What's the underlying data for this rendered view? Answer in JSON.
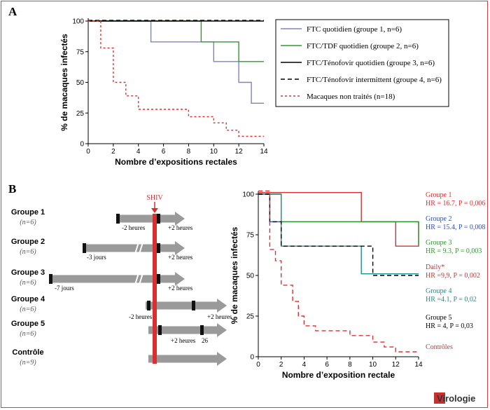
{
  "panels": {
    "a_label": "A",
    "b_label": "B"
  },
  "logo": {
    "text": "Virologie"
  },
  "chart_data": [
    {
      "type": "line",
      "xlabel": "Nombre d’expositions rectales",
      "ylabel": "% de macaques infectés",
      "xlim": [
        0,
        14
      ],
      "ylim": [
        0,
        100
      ],
      "xticks": [
        0,
        2,
        4,
        6,
        8,
        10,
        12,
        14
      ],
      "yticks": [
        0,
        25,
        50,
        75,
        100
      ],
      "legend_placement": "right",
      "series": [
        {
          "name": "FTC quotidien (groupe 1, n=6)",
          "color": "#8080c8",
          "dash": "solid",
          "x": [
            0,
            5,
            5,
            10,
            10,
            12,
            12,
            13,
            13,
            14
          ],
          "y": [
            100,
            100,
            83,
            83,
            67,
            67,
            50,
            50,
            33,
            33
          ]
        },
        {
          "name": "FTC/TDF quotidien (groupe 2, n=6)",
          "color": "#2e9a2e",
          "dash": "solid",
          "x": [
            0,
            9,
            9,
            12,
            12,
            14
          ],
          "y": [
            100,
            100,
            83,
            83,
            67,
            67
          ]
        },
        {
          "name": "FTC/Ténofovir quotidien (groupe 3, n=6)",
          "color": "#000000",
          "dash": "solid",
          "x": [
            0,
            14
          ],
          "y": [
            100,
            100
          ]
        },
        {
          "name": "FTC/Ténofovir intermittent (groupe 4, n=6)",
          "color": "#000000",
          "dash": "dashed",
          "x": [
            0,
            14
          ],
          "y": [
            100.5,
            100.5
          ]
        },
        {
          "name": "Macaques non traités (n=18)",
          "color": "#e03030",
          "dash": "dotted",
          "x": [
            0,
            1,
            1,
            2,
            2,
            3,
            3,
            4,
            4,
            8,
            8,
            10,
            10,
            11,
            11,
            12,
            12,
            13,
            13,
            14
          ],
          "y": [
            100,
            100,
            78,
            78,
            50,
            50,
            39,
            39,
            28,
            28,
            22,
            22,
            17,
            17,
            11,
            11,
            6,
            6,
            6,
            6
          ]
        }
      ]
    },
    {
      "type": "line",
      "xlabel": "Nombre d’exposition rectale",
      "ylabel": "% de macaques infectés",
      "xlim": [
        0,
        14
      ],
      "ylim": [
        0,
        100
      ],
      "xticks": [
        0,
        2,
        4,
        6,
        8,
        10,
        12,
        14
      ],
      "yticks": [
        0,
        25,
        50,
        75,
        100
      ],
      "series": [
        {
          "name": "Groupe 1",
          "color": "#d83030",
          "dash": "solid",
          "x": [
            0,
            9,
            9,
            12,
            12,
            14,
            14
          ],
          "y": [
            101,
            101,
            83,
            83,
            68,
            68,
            83
          ]
        },
        {
          "name": "Groupe 2",
          "color": "#3050b0",
          "dash": "solid",
          "x": [
            0,
            1,
            1,
            14
          ],
          "y": [
            100,
            100,
            83,
            83
          ]
        },
        {
          "name": "Groupe 3",
          "color": "#2e9a2e",
          "dash": "solid",
          "x": [
            0,
            2,
            2,
            14,
            14
          ],
          "y": [
            100,
            100,
            83,
            83,
            68
          ]
        },
        {
          "name": "Groupe 4",
          "color": "#1a9090",
          "dash": "solid",
          "x": [
            0,
            2,
            2,
            9,
            9,
            14
          ],
          "y": [
            100,
            100,
            68,
            68,
            51,
            51
          ]
        },
        {
          "name": "Groupe 5",
          "color": "#000000",
          "dash": "dashed",
          "x": [
            0,
            1,
            1,
            2,
            2,
            10,
            10,
            14
          ],
          "y": [
            100,
            100,
            83,
            83,
            68,
            68,
            50,
            50
          ]
        },
        {
          "name": "Contrôles",
          "color": "#e03030",
          "dash": "dashed",
          "x": [
            0,
            1,
            1,
            1.5,
            1.5,
            2,
            2,
            3,
            3,
            3.5,
            3.5,
            4,
            4,
            5,
            5,
            8,
            8,
            10,
            10,
            11,
            11,
            12,
            12,
            13,
            13,
            14
          ],
          "y": [
            102,
            102,
            66,
            66,
            59,
            59,
            44,
            44,
            34,
            34,
            25,
            25,
            19,
            19,
            16,
            16,
            13,
            13,
            9,
            9,
            6,
            6,
            3,
            3,
            3,
            3
          ]
        },
        {
          "name": "Daily*",
          "color": "#d83030",
          "dash": "solid",
          "x": [],
          "y": []
        }
      ],
      "annotations": [
        {
          "label": "Groupe 1",
          "stats": "HR = 16.7, P = 0,006",
          "color": "#d83030"
        },
        {
          "label": "Groupe 2",
          "stats": "HR = 15.4, P = 0,008",
          "color": "#3050b0"
        },
        {
          "label": "Groupe 3",
          "stats": "HR = 9.3, P = 0,003",
          "color": "#2e9a2e"
        },
        {
          "label": "Daily*",
          "stats": "HR =9,9, P = 0,002",
          "color": "#d83030"
        },
        {
          "label": "Groupe 4",
          "stats": "HR =4.1, P = 0,02",
          "color": "#1a9090"
        },
        {
          "label": "Groupe 5",
          "stats": "HR = 4, P = 0,03",
          "color": "#000000"
        },
        {
          "label": "Contrôles",
          "stats": "",
          "color": "#e03030"
        }
      ]
    }
  ],
  "schema": {
    "shiv_label": "SHIV",
    "groups": [
      {
        "name": "Groupe 1",
        "n": "(n=6)",
        "labels": [
          "-2 heures",
          "+2 heures"
        ]
      },
      {
        "name": "Groupe 2",
        "n": "(n=6)",
        "labels": [
          "-3 jours",
          "+2 heures"
        ]
      },
      {
        "name": "Groupe 3",
        "n": "(n=6)",
        "labels": [
          "-7 jours",
          "+2 heures"
        ]
      },
      {
        "name": "Groupe 4",
        "n": "(n=6)",
        "labels": [
          "-2 heures",
          "+2 heures"
        ]
      },
      {
        "name": "Groupe 5",
        "n": "(n=6)",
        "labels": [
          "+2 heures",
          "26"
        ]
      },
      {
        "name": "Contrôle",
        "n": "(n=9)",
        "labels": []
      }
    ]
  }
}
